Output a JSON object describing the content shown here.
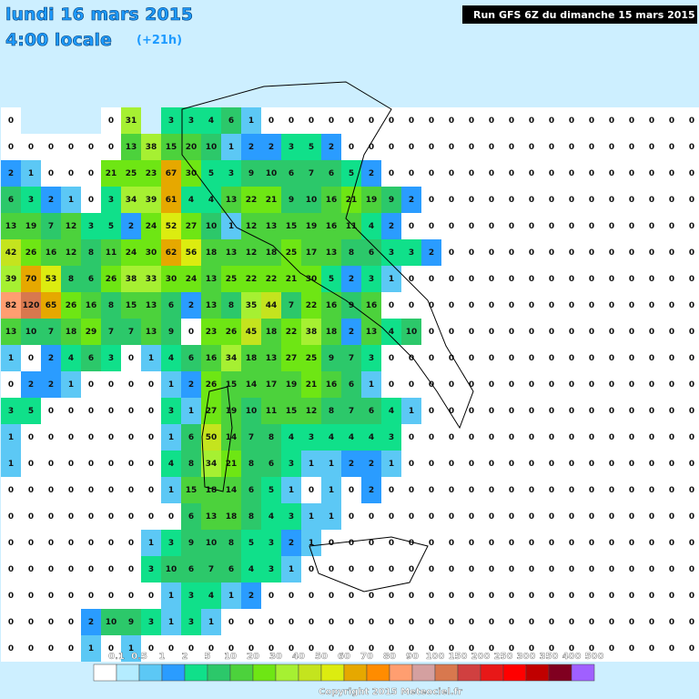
{
  "header": {
    "date": "lundi 16 mars 2015",
    "time": "4:00 locale",
    "offset": "(+21h)",
    "run": "Run GFS 6Z du dimanche 15 mars 2015"
  },
  "map": {
    "grid": [
      [
        0,
        null,
        null,
        null,
        null,
        0,
        31,
        null,
        3,
        3,
        4,
        6,
        1,
        0,
        0,
        0,
        0,
        0,
        0,
        0,
        0,
        0,
        0,
        0,
        0,
        0,
        0,
        0,
        0,
        0,
        0,
        0,
        0,
        0,
        0
      ],
      [
        0,
        0,
        0,
        0,
        0,
        0,
        13,
        38,
        15,
        20,
        10,
        1,
        2,
        2,
        3,
        5,
        2,
        0,
        0,
        0,
        0,
        0,
        0,
        0,
        0,
        0,
        0,
        0,
        0,
        0,
        0,
        0,
        0,
        0,
        0
      ],
      [
        2,
        1,
        0,
        0,
        0,
        21,
        25,
        23,
        67,
        30,
        5,
        3,
        9,
        10,
        6,
        7,
        6,
        5,
        2,
        0,
        0,
        0,
        0,
        0,
        0,
        0,
        0,
        0,
        0,
        0,
        0,
        0,
        0,
        0,
        0
      ],
      [
        6,
        3,
        2,
        1,
        0,
        3,
        34,
        39,
        61,
        4,
        4,
        13,
        22,
        21,
        9,
        10,
        16,
        21,
        19,
        9,
        2,
        0,
        0,
        0,
        0,
        0,
        0,
        0,
        0,
        0,
        0,
        0,
        0,
        0,
        0
      ],
      [
        13,
        19,
        7,
        12,
        3,
        5,
        2,
        24,
        52,
        27,
        10,
        1,
        12,
        13,
        15,
        19,
        16,
        11,
        4,
        2,
        0,
        0,
        0,
        0,
        0,
        0,
        0,
        0,
        0,
        0,
        0,
        0,
        0,
        0,
        0
      ],
      [
        42,
        26,
        16,
        12,
        8,
        11,
        24,
        30,
        62,
        56,
        18,
        13,
        12,
        18,
        25,
        17,
        13,
        8,
        6,
        3,
        3,
        2,
        0,
        0,
        0,
        0,
        0,
        0,
        0,
        0,
        0,
        0,
        0,
        0,
        0
      ],
      [
        39,
        70,
        53,
        8,
        6,
        26,
        38,
        33,
        30,
        24,
        13,
        25,
        22,
        22,
        21,
        30,
        5,
        2,
        3,
        1,
        0,
        0,
        0,
        0,
        0,
        0,
        0,
        0,
        0,
        0,
        0,
        0,
        0,
        0,
        0
      ],
      [
        82,
        120,
        65,
        26,
        16,
        8,
        15,
        13,
        6,
        2,
        13,
        8,
        35,
        44,
        7,
        22,
        16,
        9,
        16,
        0,
        0,
        0,
        0,
        0,
        0,
        0,
        0,
        0,
        0,
        0,
        0,
        0,
        0,
        0,
        0
      ],
      [
        13,
        10,
        7,
        18,
        29,
        7,
        7,
        13,
        9,
        0,
        23,
        26,
        45,
        18,
        22,
        38,
        18,
        2,
        13,
        4,
        10,
        0,
        0,
        0,
        0,
        0,
        0,
        0,
        0,
        0,
        0,
        0,
        0,
        0,
        0
      ],
      [
        1,
        0,
        2,
        4,
        6,
        3,
        0,
        1,
        4,
        6,
        16,
        34,
        18,
        13,
        27,
        25,
        9,
        7,
        3,
        0,
        0,
        0,
        0,
        0,
        0,
        0,
        0,
        0,
        0,
        0,
        0,
        0,
        0,
        0,
        0
      ],
      [
        0,
        2,
        2,
        1,
        0,
        0,
        0,
        0,
        1,
        2,
        26,
        15,
        14,
        17,
        19,
        21,
        16,
        6,
        1,
        0,
        0,
        0,
        0,
        0,
        0,
        0,
        0,
        0,
        0,
        0,
        0,
        0,
        0,
        0,
        0
      ],
      [
        3,
        5,
        0,
        0,
        0,
        0,
        0,
        0,
        3,
        1,
        27,
        19,
        10,
        11,
        15,
        12,
        8,
        7,
        6,
        4,
        1,
        0,
        0,
        0,
        0,
        0,
        0,
        0,
        0,
        0,
        0,
        0,
        0,
        0,
        0
      ],
      [
        1,
        0,
        0,
        0,
        0,
        0,
        0,
        0,
        1,
        6,
        50,
        14,
        7,
        8,
        4,
        3,
        4,
        4,
        4,
        3,
        0,
        0,
        0,
        0,
        0,
        0,
        0,
        0,
        0,
        0,
        0,
        0,
        0,
        0,
        0
      ],
      [
        1,
        0,
        0,
        0,
        0,
        0,
        0,
        0,
        4,
        8,
        34,
        21,
        8,
        6,
        3,
        1,
        1,
        2,
        2,
        1,
        0,
        0,
        0,
        0,
        0,
        0,
        0,
        0,
        0,
        0,
        0,
        0,
        0,
        0,
        0
      ],
      [
        0,
        0,
        0,
        0,
        0,
        0,
        0,
        0,
        1,
        15,
        18,
        14,
        6,
        5,
        1,
        0,
        1,
        0,
        2,
        0,
        0,
        0,
        0,
        0,
        0,
        0,
        0,
        0,
        0,
        0,
        0,
        0,
        0,
        0,
        0
      ],
      [
        0,
        0,
        0,
        0,
        0,
        0,
        0,
        0,
        0,
        6,
        13,
        18,
        8,
        4,
        3,
        1,
        1,
        0,
        0,
        0,
        0,
        0,
        0,
        0,
        0,
        0,
        0,
        0,
        0,
        0,
        0,
        0,
        0,
        0,
        0
      ],
      [
        0,
        0,
        0,
        0,
        0,
        0,
        0,
        1,
        3,
        9,
        10,
        8,
        5,
        3,
        2,
        1,
        0,
        0,
        0,
        0,
        0,
        0,
        0,
        0,
        0,
        0,
        0,
        0,
        0,
        0,
        0,
        0,
        0,
        0,
        0
      ],
      [
        0,
        0,
        0,
        0,
        0,
        0,
        0,
        3,
        10,
        6,
        7,
        6,
        4,
        3,
        1,
        0,
        0,
        0,
        0,
        0,
        0,
        0,
        0,
        0,
        0,
        0,
        0,
        0,
        0,
        0,
        0,
        0,
        0,
        0,
        0
      ],
      [
        0,
        0,
        0,
        0,
        0,
        0,
        0,
        0,
        1,
        3,
        4,
        1,
        2,
        0,
        0,
        0,
        0,
        0,
        0,
        0,
        0,
        0,
        0,
        0,
        0,
        0,
        0,
        0,
        0,
        0,
        0,
        0,
        0,
        0,
        0
      ],
      [
        0,
        0,
        0,
        0,
        2,
        10,
        9,
        3,
        1,
        3,
        1,
        0,
        0,
        0,
        0,
        0,
        0,
        0,
        0,
        0,
        0,
        0,
        0,
        0,
        0,
        0,
        0,
        0,
        0,
        0,
        0,
        0,
        0,
        0,
        0
      ],
      [
        0,
        0,
        0,
        0,
        1,
        0,
        1,
        0,
        0,
        0,
        0,
        0,
        0,
        0,
        0,
        0,
        0,
        0,
        0,
        0,
        0,
        0,
        0,
        0,
        0,
        0,
        0,
        0,
        0,
        0,
        0,
        0,
        0,
        0,
        0
      ]
    ]
  },
  "legend": {
    "thresholds": [
      0.1,
      0.5,
      1,
      2,
      5,
      10,
      20,
      30,
      40,
      50,
      60,
      70,
      80,
      90,
      100,
      150,
      200,
      250,
      300,
      350,
      400,
      500
    ],
    "colors": [
      "#ffffff",
      "#b4ecff",
      "#5cc8f5",
      "#2a9cff",
      "#10e08a",
      "#2cc86a",
      "#4cd23c",
      "#6ee614",
      "#a6f032",
      "#c4e41e",
      "#dcec10",
      "#e6a800",
      "#ff8c00",
      "#ff9e70",
      "#d4a0a0",
      "#d8784e",
      "#d04040",
      "#e81818",
      "#ff0000",
      "#c00000",
      "#800020",
      "#a060ff"
    ]
  },
  "footer": {
    "copyright": "Copyright 2015 Meteociel.fr"
  }
}
